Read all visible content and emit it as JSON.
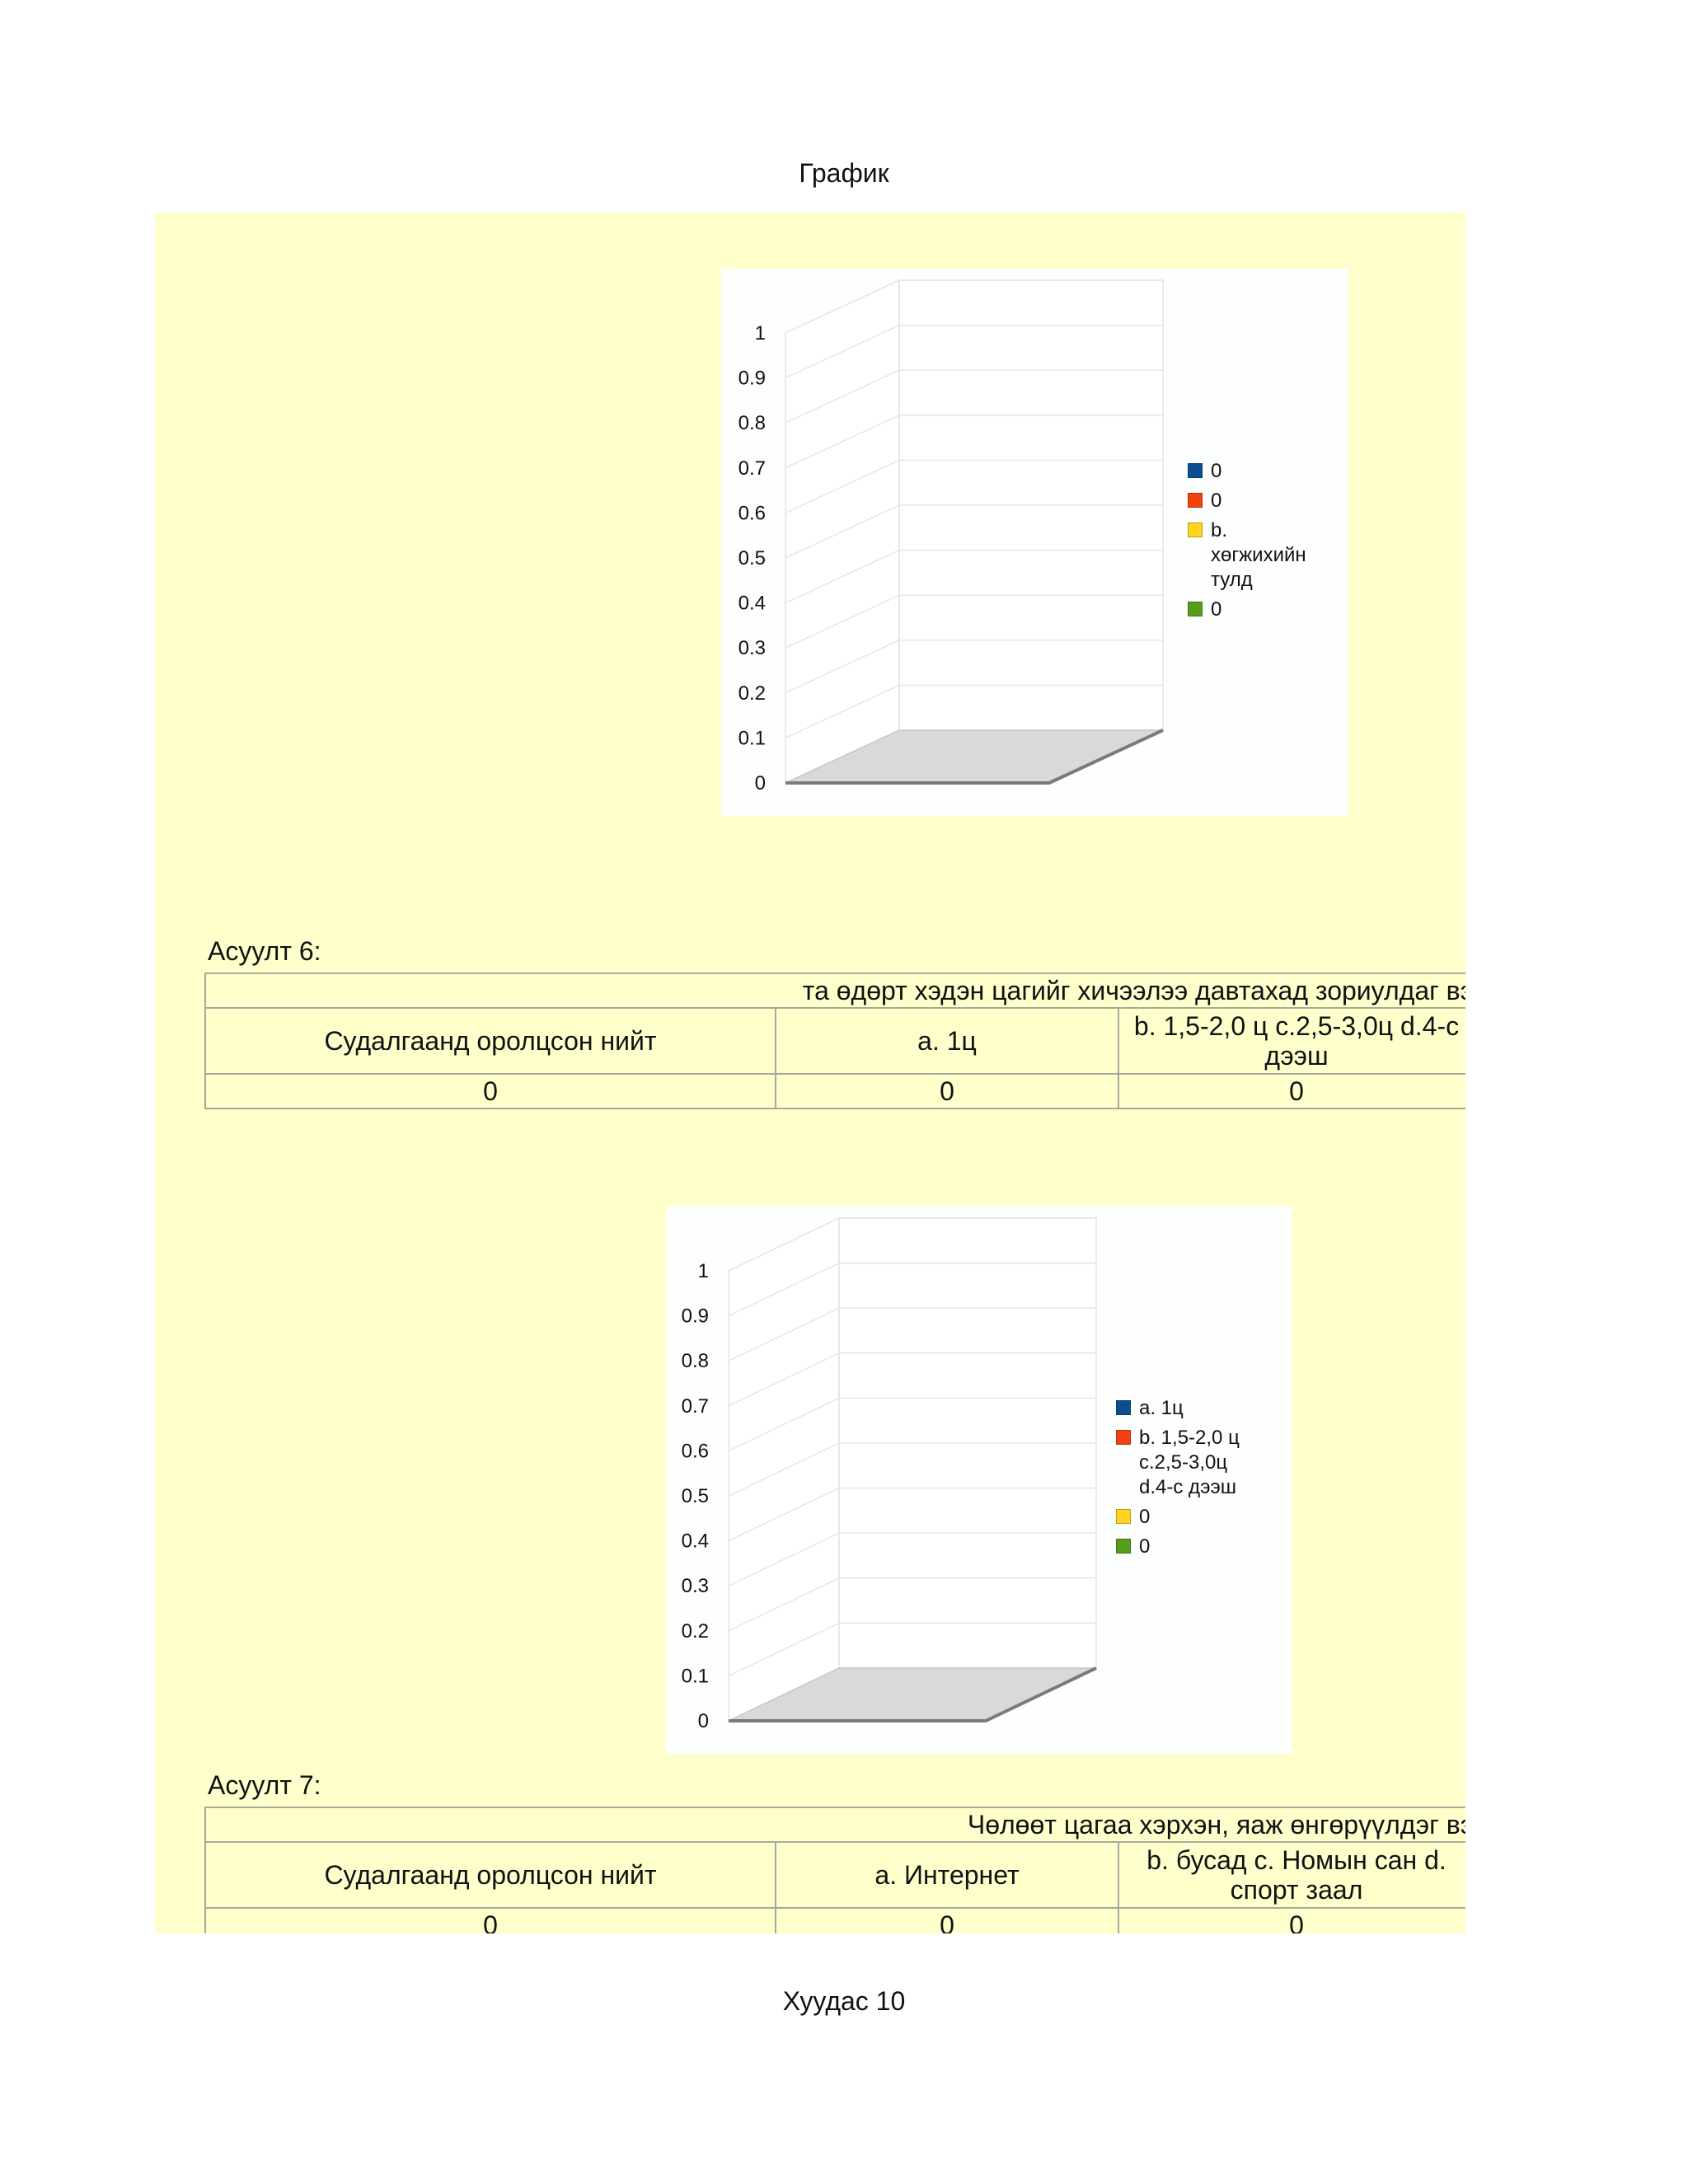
{
  "page": {
    "title": "График",
    "footer": "Хуудас 10"
  },
  "colors": {
    "sheet_bg": "#ffffcc",
    "series_blue": "#0c4f91",
    "series_red": "#f3420f",
    "series_yellow": "#ffd320",
    "series_green": "#579d1c",
    "floor": "#d9d9d9"
  },
  "chart1": {
    "chart_data": {
      "type": "bar",
      "title": "",
      "categories": [
        ""
      ],
      "series": [
        {
          "name": "0",
          "values": [
            0
          ],
          "color": "#0c4f91"
        },
        {
          "name": "0",
          "values": [
            0
          ],
          "color": "#f3420f"
        },
        {
          "name": "b.\nхөгжихийн\nтулд",
          "values": [
            0
          ],
          "color": "#ffd320"
        },
        {
          "name": "0",
          "values": [
            0
          ],
          "color": "#579d1c"
        }
      ],
      "ylim": [
        0,
        1
      ],
      "yticks": [
        "0",
        "0.1",
        "0.2",
        "0.3",
        "0.4",
        "0.5",
        "0.6",
        "0.7",
        "0.8",
        "0.9",
        "1"
      ],
      "legend_position": "right",
      "grid": true,
      "style": "3d"
    }
  },
  "q6": {
    "label": "Асуулт 6:",
    "question": "та өдөрт хэдэн цагийг хичээлээ давтахад зориулдаг вэ",
    "headers": [
      "Судалгаанд оролцсон нийт",
      "a. 1ц",
      "b. 1,5-2,0 ц      c.2,5-3,0ц d.4-с дээш"
    ],
    "values": [
      "0",
      "0",
      "0"
    ]
  },
  "chart2": {
    "chart_data": {
      "type": "bar",
      "title": "",
      "categories": [
        ""
      ],
      "series": [
        {
          "name": "a. 1ц",
          "values": [
            0
          ],
          "color": "#0c4f91"
        },
        {
          "name": "b. 1,5-2,0 ц\n   c.2,5-3,0ц\nd.4-с дээш",
          "values": [
            0
          ],
          "color": "#f3420f"
        },
        {
          "name": "0",
          "values": [
            0
          ],
          "color": "#ffd320"
        },
        {
          "name": "0",
          "values": [
            0
          ],
          "color": "#579d1c"
        }
      ],
      "ylim": [
        0,
        1
      ],
      "yticks": [
        "0",
        "0.1",
        "0.2",
        "0.3",
        "0.4",
        "0.5",
        "0.6",
        "0.7",
        "0.8",
        "0.9",
        "1"
      ],
      "legend_position": "right",
      "grid": true,
      "style": "3d"
    }
  },
  "q7": {
    "label": "Асуулт 7:",
    "question": "Чөлөөт цагаа хэрхэн, яаж өнгөрүүлдэг вэ",
    "headers": [
      "Судалгаанд оролцсон нийт",
      "a. Интернет",
      "b. бусад  c. Номын сан  d. спорт заал"
    ],
    "values": [
      "0",
      "0",
      "0"
    ]
  }
}
